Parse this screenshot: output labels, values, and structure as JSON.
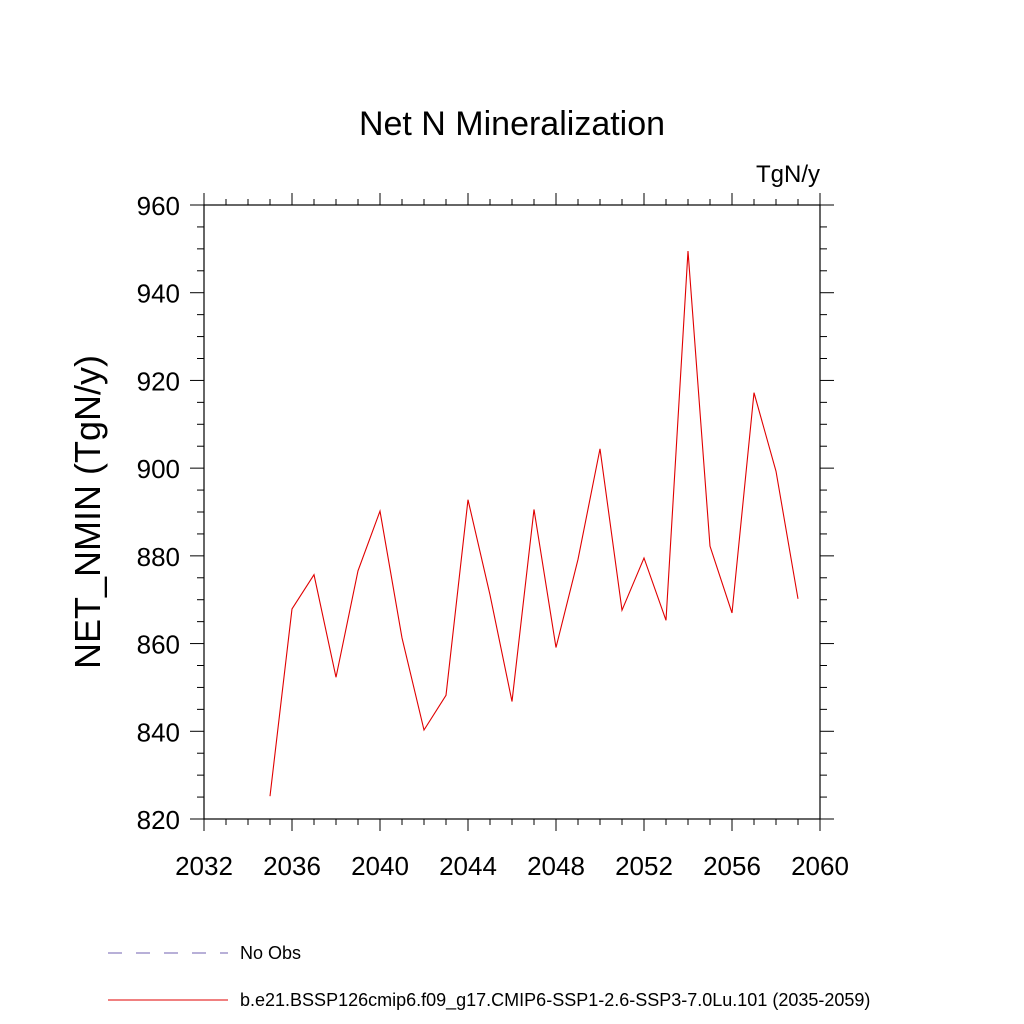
{
  "chart_data": {
    "type": "line",
    "title": "Net N Mineralization",
    "units_label": "TgN/y",
    "ylabel": "NET_NMIN  (TgN/y)",
    "xlabel": "",
    "xlim": [
      2032,
      2060
    ],
    "ylim": [
      820,
      960
    ],
    "x_major_ticks": [
      2032,
      2036,
      2040,
      2044,
      2048,
      2052,
      2056,
      2060
    ],
    "x_tick_labels": [
      "2032",
      "2036",
      "2040",
      "2044",
      "2048",
      "2052",
      "2056",
      "2060"
    ],
    "x_minor_step": 1,
    "y_major_ticks": [
      820,
      840,
      860,
      880,
      900,
      920,
      940,
      960
    ],
    "y_tick_labels": [
      "820",
      "840",
      "860",
      "880",
      "900",
      "920",
      "940",
      "960"
    ],
    "y_minor_step": 5,
    "grid": false,
    "series": [
      {
        "name": "b.e21.BSSP126cmip6.f09_g17.CMIP6-SSP1-2.6-SSP3-7.0Lu.101 (2035-2059)",
        "color": "#e00000",
        "style": "solid",
        "x": [
          2035,
          2036,
          2037,
          2038,
          2039,
          2040,
          2041,
          2042,
          2043,
          2044,
          2045,
          2046,
          2047,
          2048,
          2049,
          2050,
          2051,
          2052,
          2053,
          2054,
          2055,
          2056,
          2057,
          2058,
          2059
        ],
        "values": [
          825.2,
          867.9,
          875.7,
          852.3,
          876.6,
          890.2,
          861.3,
          840.3,
          848.2,
          892.8,
          871.1,
          846.8,
          890.6,
          859.1,
          879.2,
          904.4,
          867.6,
          879.5,
          865.3,
          949.5,
          882.2,
          867.0,
          917.2,
          899.3,
          870.2
        ]
      }
    ],
    "legend": [
      {
        "label": "No Obs",
        "color": "#7060b0",
        "style": "dashed"
      },
      {
        "label": "b.e21.BSSP126cmip6.f09_g17.CMIP6-SSP1-2.6-SSP3-7.0Lu.101 (2035-2059)",
        "color": "#e00000",
        "style": "solid"
      }
    ],
    "legend_position": "bottom-left"
  }
}
